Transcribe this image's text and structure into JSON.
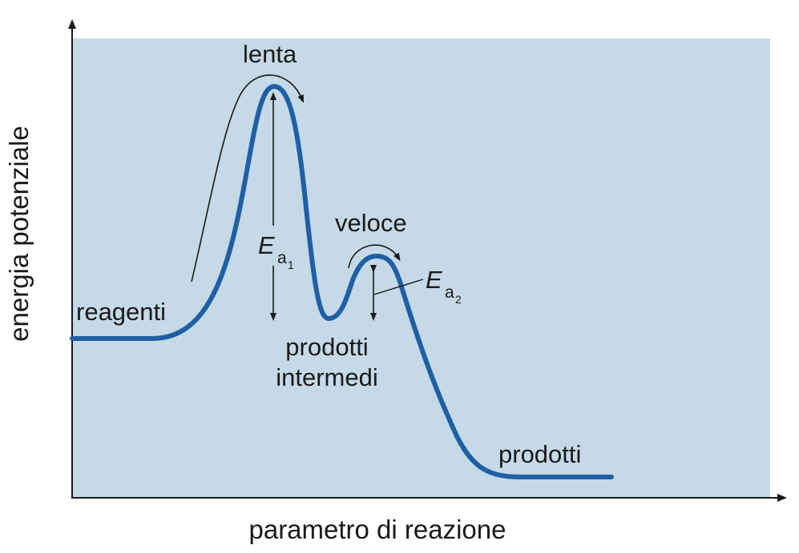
{
  "axes": {
    "x_label": "parametro di reazione",
    "y_label": "energia potenziale"
  },
  "labels": {
    "reactants": "reagenti",
    "slow": "lenta",
    "fast": "veloce",
    "intermediates_line1": "prodotti",
    "intermediates_line2": "intermedi",
    "products": "prodotti"
  },
  "activation_energies": {
    "ea1": {
      "symbol": "E",
      "subscript": "a",
      "index": "1"
    },
    "ea2": {
      "symbol": "E",
      "subscript": "a",
      "index": "2"
    }
  },
  "colors": {
    "background": "#c5d9e6",
    "curve": "#1f5fa5",
    "axis": "#1a1a1a"
  }
}
